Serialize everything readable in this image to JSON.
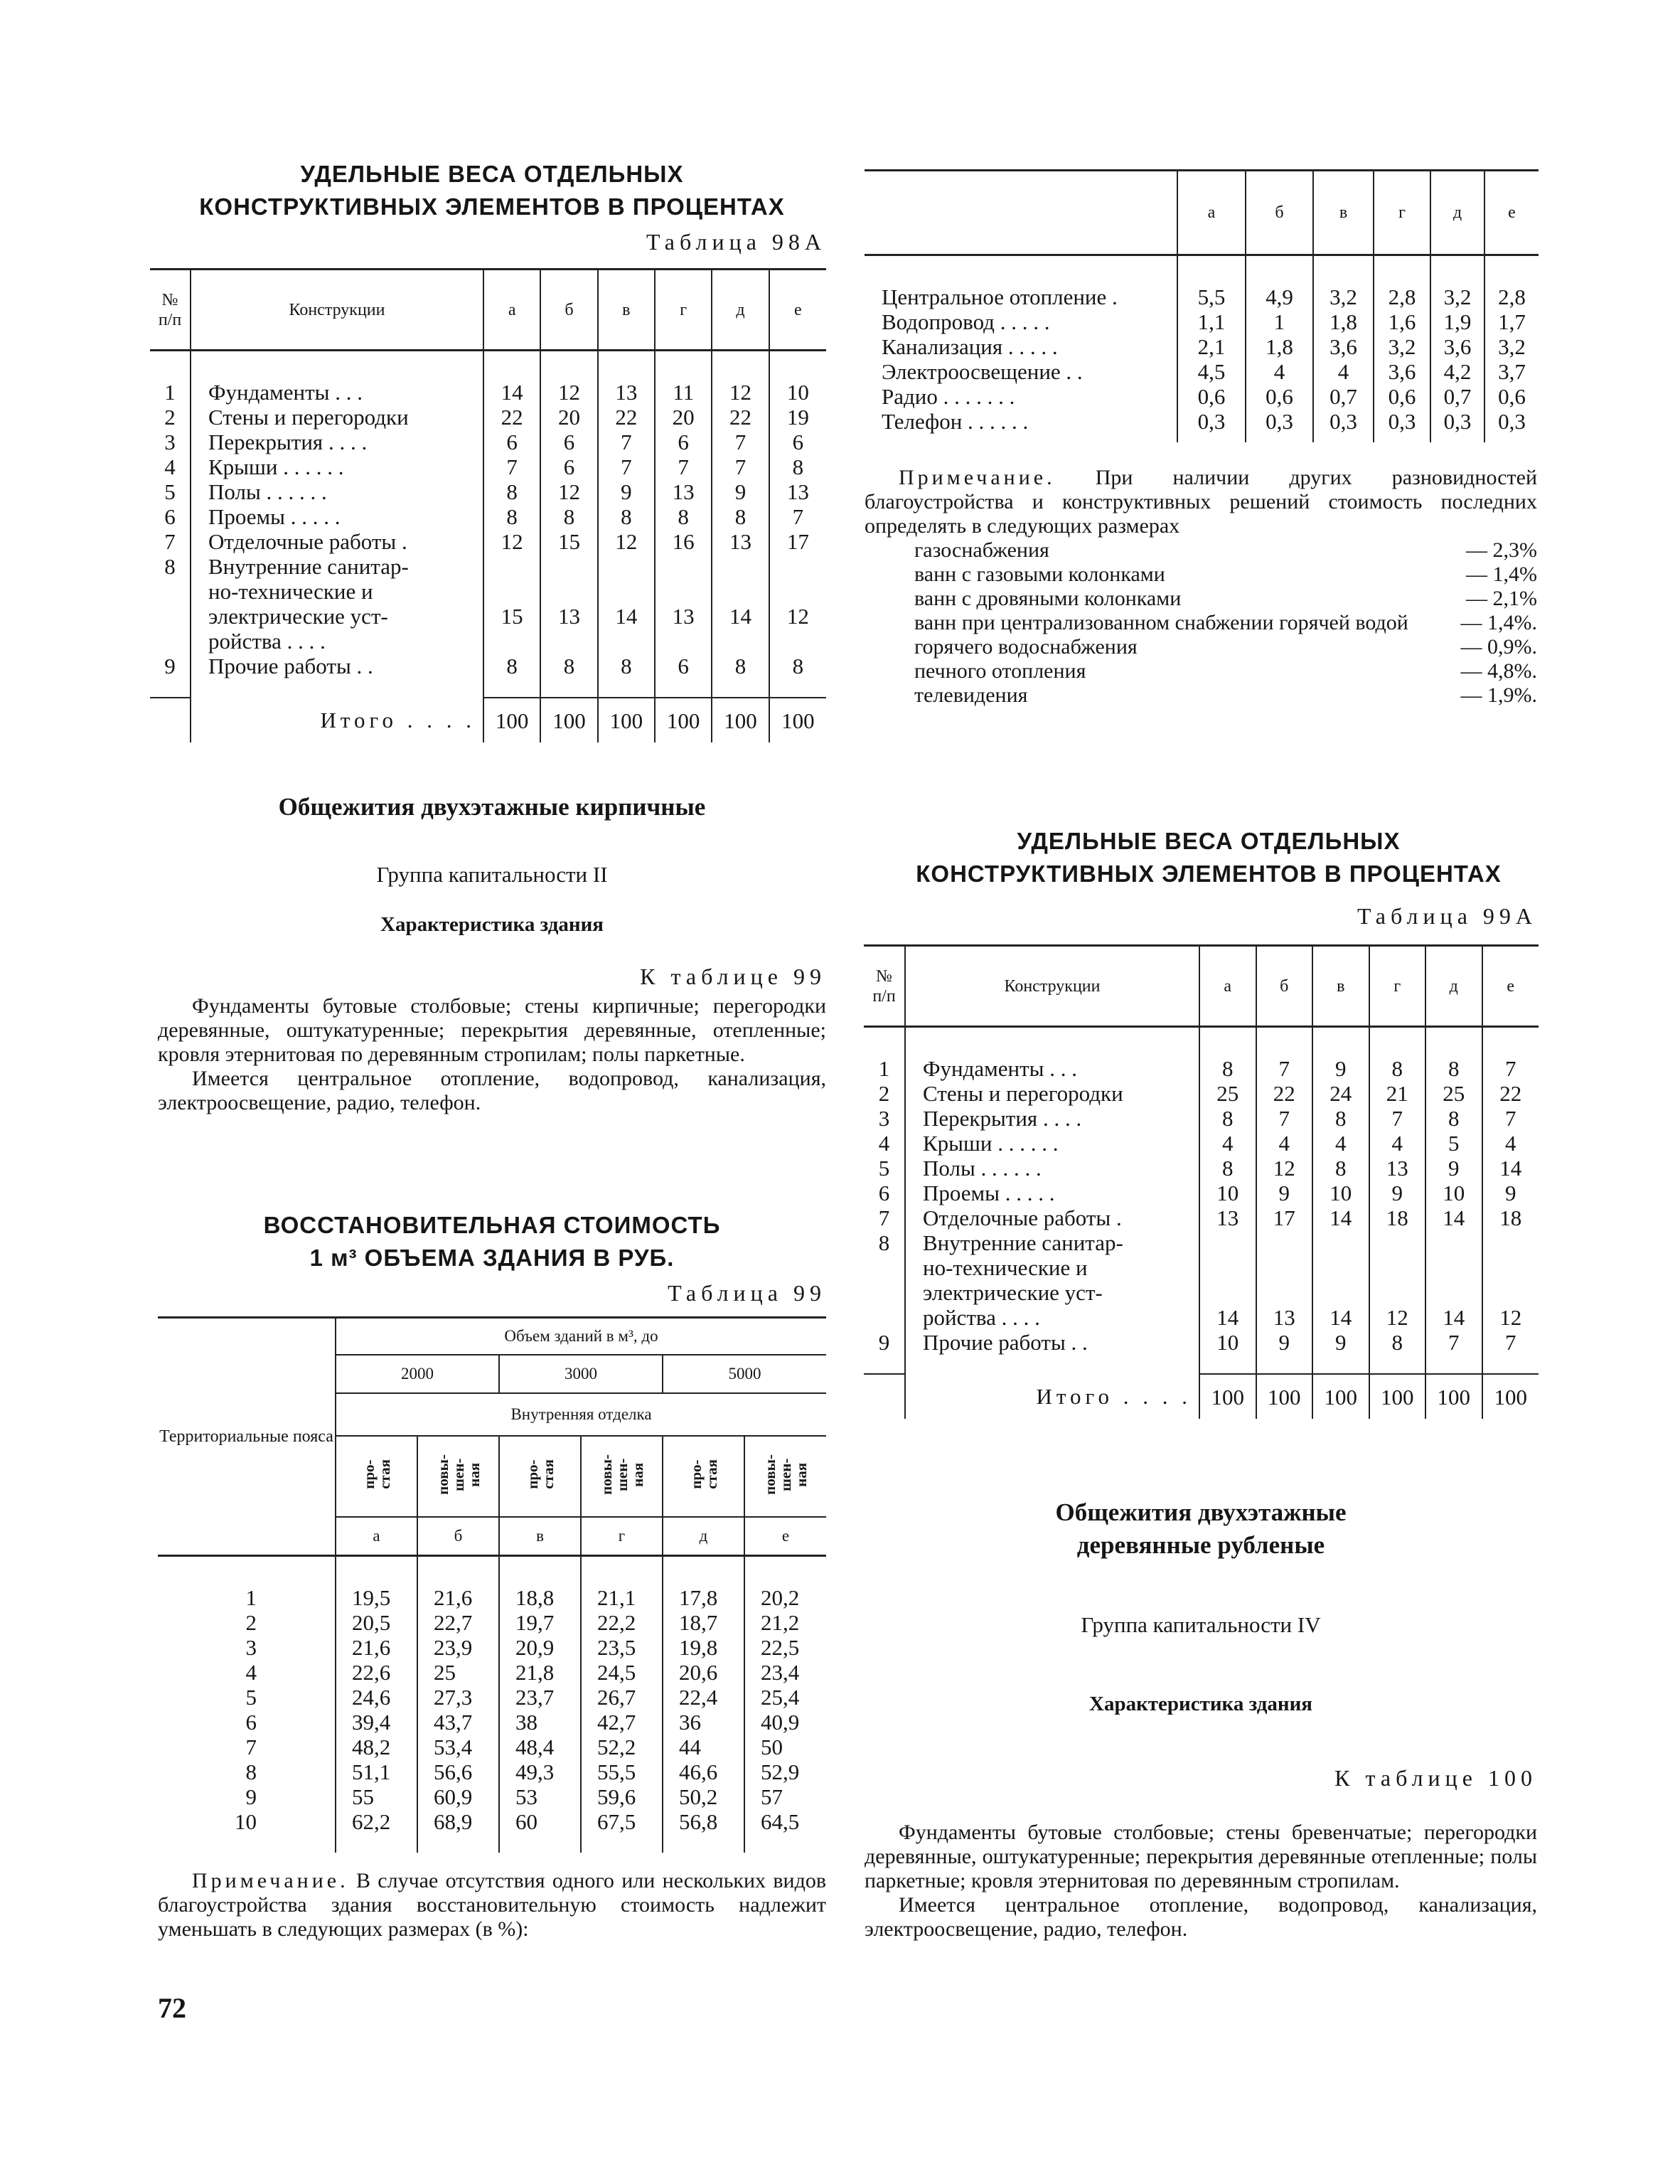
{
  "page_number": "72",
  "table98a": {
    "title_lines": [
      "УДЕЛЬНЫЕ ВЕСА ОТДЕЛЬНЫХ",
      "КОНСТРУКТИВНЫХ ЭЛЕМЕНТОВ В ПРОЦЕНТАХ"
    ],
    "label": "Таблица 98А",
    "headers": {
      "num": "№\nп/п",
      "name": "Конструкции",
      "cols": [
        "а",
        "б",
        "в",
        "г",
        "д",
        "е"
      ]
    },
    "rows": [
      {
        "num": "1",
        "name": "Фундаменты . . .",
        "values": [
          "14",
          "12",
          "13",
          "11",
          "12",
          "10"
        ]
      },
      {
        "num": "2",
        "name": "Стены и перегородки",
        "values": [
          "22",
          "20",
          "22",
          "20",
          "22",
          "19"
        ]
      },
      {
        "num": "3",
        "name": "Перекрытия . . . .",
        "values": [
          "6",
          "6",
          "7",
          "6",
          "7",
          "6"
        ]
      },
      {
        "num": "4",
        "name": "Крыши . . . . . .",
        "values": [
          "7",
          "6",
          "7",
          "7",
          "7",
          "8"
        ]
      },
      {
        "num": "5",
        "name": "Полы . . . . . .",
        "values": [
          "8",
          "12",
          "9",
          "13",
          "9",
          "13"
        ]
      },
      {
        "num": "6",
        "name": "Проемы . . . . .",
        "values": [
          "8",
          "8",
          "8",
          "8",
          "8",
          "7"
        ]
      },
      {
        "num": "7",
        "name": "Отделочные работы .",
        "values": [
          "12",
          "15",
          "12",
          "16",
          "13",
          "17"
        ]
      },
      {
        "num": "8",
        "name": "Внутренние санитар-\n   но-технические и\n   электрические уст-\n   ройства . . . .",
        "values": [
          "15",
          "13",
          "14",
          "13",
          "14",
          "12"
        ]
      },
      {
        "num": "9",
        "name": "Прочие работы . .",
        "values": [
          "8",
          "8",
          "8",
          "6",
          "8",
          "8"
        ]
      }
    ],
    "total": {
      "label": "Итого . . . .",
      "values": [
        "100",
        "100",
        "100",
        "100",
        "100",
        "100"
      ]
    }
  },
  "table98a_cont": {
    "cols": [
      "а",
      "б",
      "в",
      "г",
      "д",
      "е"
    ],
    "rows": [
      {
        "name": "Центральное отопление .",
        "values": [
          "5,5",
          "4,9",
          "3,2",
          "2,8",
          "3,2",
          "2,8"
        ]
      },
      {
        "name": "Водопровод . . . . .",
        "values": [
          "1,1",
          "1",
          "1,8",
          "1,6",
          "1,9",
          "1,7"
        ]
      },
      {
        "name": "Канализация . . . . .",
        "values": [
          "2,1",
          "1,8",
          "3,6",
          "3,2",
          "3,6",
          "3,2"
        ]
      },
      {
        "name": "Электроосвещение . .",
        "values": [
          "4,5",
          "4",
          "4",
          "3,6",
          "4,2",
          "3,7"
        ]
      },
      {
        "name": "Радио . . . . . . .",
        "values": [
          "0,6",
          "0,6",
          "0,7",
          "0,6",
          "0,7",
          "0,6"
        ]
      },
      {
        "name": "Телефон . . . . . .",
        "values": [
          "0,3",
          "0,3",
          "0,3",
          "0,3",
          "0,3",
          "0,3"
        ]
      }
    ],
    "note": {
      "lead": "Примечание.",
      "text": "При наличии других разновидностей благоустройства и конструктивных решений стоимость последних определять в следующих размерах",
      "items": [
        {
          "label": "газоснабжения",
          "value": "— 2,3%"
        },
        {
          "label": "ванн с газовыми колонками",
          "value": "— 1,4%"
        },
        {
          "label": "ванн с дровяными колонками",
          "value": "— 2,1%"
        },
        {
          "label": "ванн при централизованном снабжении горячей водой",
          "value": "— 1,4%."
        },
        {
          "label": "горячего водоснабжения",
          "value": "— 0,9%."
        },
        {
          "label": "печного отопления",
          "value": "— 4,8%."
        },
        {
          "label": "телевидения",
          "value": "— 1,9%."
        }
      ]
    }
  },
  "section_brick": {
    "title": "Общежития двухэтажные кирпичные",
    "group": "Группа капитальности II",
    "char_title": "Характеристика здания",
    "ref": "К таблице 99",
    "paragraphs": [
      "Фундаменты бутовые столбовые; стены кирпичные; перегородки деревянные, оштукатуренные; перекрытия деревянные, отепленные; кровля этернитовая по деревянным стропилам; полы паркетные.",
      "Имеется центральное отопление, водопровод, канализация, электроосвещение, радио, телефон."
    ]
  },
  "table99": {
    "title_lines": [
      "ВОССТАНОВИТЕЛЬНАЯ СТОИМОСТЬ",
      "1 м³ ОБЪЕМА ЗДАНИЯ В РУБ."
    ],
    "label": "Таблица 99",
    "headers": {
      "zone": "Территориальные пояса",
      "volume": "Объем зданий в м³, до",
      "volumes": [
        "2000",
        "3000",
        "5000"
      ],
      "finish": "Внутренняя отделка",
      "finish_types": [
        "про-\nстая",
        "повы-\nшен-\nная",
        "про-\nстая",
        "повы-\nшен-\nная",
        "про-\nстая",
        "повы-\nшен-\nная"
      ],
      "cols": [
        "а",
        "б",
        "в",
        "г",
        "д",
        "е"
      ]
    },
    "rows": [
      {
        "zone": "1",
        "values": [
          "19,5",
          "21,6",
          "18,8",
          "21,1",
          "17,8",
          "20,2"
        ]
      },
      {
        "zone": "2",
        "values": [
          "20,5",
          "22,7",
          "19,7",
          "22,2",
          "18,7",
          "21,2"
        ]
      },
      {
        "zone": "3",
        "values": [
          "21,6",
          "23,9",
          "20,9",
          "23,5",
          "19,8",
          "22,5"
        ]
      },
      {
        "zone": "4",
        "values": [
          "22,6",
          "25",
          "21,8",
          "24,5",
          "20,6",
          "23,4"
        ]
      },
      {
        "zone": "5",
        "values": [
          "24,6",
          "27,3",
          "23,7",
          "26,7",
          "22,4",
          "25,4"
        ]
      },
      {
        "zone": "6",
        "values": [
          "39,4",
          "43,7",
          "38",
          "42,7",
          "36",
          "40,9"
        ]
      },
      {
        "zone": "7",
        "values": [
          "48,2",
          "53,4",
          "48,4",
          "52,2",
          "44",
          "50"
        ]
      },
      {
        "zone": "8",
        "values": [
          "51,1",
          "56,6",
          "49,3",
          "55,5",
          "46,6",
          "52,9"
        ]
      },
      {
        "zone": "9",
        "values": [
          "55",
          "60,9",
          "53",
          "59,6",
          "50,2",
          "57"
        ]
      },
      {
        "zone": "10",
        "values": [
          "62,2",
          "68,9",
          "60",
          "67,5",
          "56,8",
          "64,5"
        ]
      }
    ],
    "note": {
      "lead": "Примечание.",
      "text": "В случае отсутствия одного или нескольких видов благоустройства здания восстановительную стоимость надлежит уменьшать в следующих размерах (в %):"
    }
  },
  "table99a": {
    "title_lines": [
      "УДЕЛЬНЫЕ ВЕСА ОТДЕЛЬНЫХ",
      "КОНСТРУКТИВНЫХ ЭЛЕМЕНТОВ В ПРОЦЕНТАХ"
    ],
    "label": "Таблица 99А",
    "headers": {
      "num": "№\nп/п",
      "name": "Конструкции",
      "cols": [
        "а",
        "б",
        "в",
        "г",
        "д",
        "е"
      ]
    },
    "rows": [
      {
        "num": "1",
        "name": "Фундаменты . . .",
        "values": [
          "8",
          "7",
          "9",
          "8",
          "8",
          "7"
        ]
      },
      {
        "num": "2",
        "name": "Стены и перегородки",
        "values": [
          "25",
          "22",
          "24",
          "21",
          "25",
          "22"
        ]
      },
      {
        "num": "3",
        "name": "Перекрытия . . . .",
        "values": [
          "8",
          "7",
          "8",
          "7",
          "8",
          "7"
        ]
      },
      {
        "num": "4",
        "name": "Крыши . . . . . .",
        "values": [
          "4",
          "4",
          "4",
          "4",
          "5",
          "4"
        ]
      },
      {
        "num": "5",
        "name": "Полы . . . . . .",
        "values": [
          "8",
          "12",
          "8",
          "13",
          "9",
          "14"
        ]
      },
      {
        "num": "6",
        "name": "Проемы . . . . .",
        "values": [
          "10",
          "9",
          "10",
          "9",
          "10",
          "9"
        ]
      },
      {
        "num": "7",
        "name": "Отделочные работы .",
        "values": [
          "13",
          "17",
          "14",
          "18",
          "14",
          "18"
        ]
      },
      {
        "num": "8",
        "name": "Внутренние санитар-\n   но-технические и\n   электрические уст-\n   ройства . . . .",
        "values": [
          "14",
          "13",
          "14",
          "12",
          "14",
          "12"
        ]
      },
      {
        "num": "9",
        "name": "Прочие работы . .",
        "values": [
          "10",
          "9",
          "9",
          "8",
          "7",
          "7"
        ]
      }
    ],
    "total": {
      "label": "Итого . . . .",
      "values": [
        "100",
        "100",
        "100",
        "100",
        "100",
        "100"
      ]
    }
  },
  "section_wood": {
    "title_lines": [
      "Общежития двухэтажные",
      "деревянные рубленые"
    ],
    "group": "Группа капитальности IV",
    "char_title": "Характеристика здания",
    "ref": "К таблице 100",
    "paragraphs": [
      "Фундаменты бутовые столбовые; стены бревенчатые; перегородки деревянные, оштукатуренные; перекрытия деревянные отепленные; полы паркетные; кровля этернитовая по деревянным стропилам.",
      "Имеется центральное отопление, водопровод, канализация, электроосвещение, радио, телефон."
    ]
  }
}
